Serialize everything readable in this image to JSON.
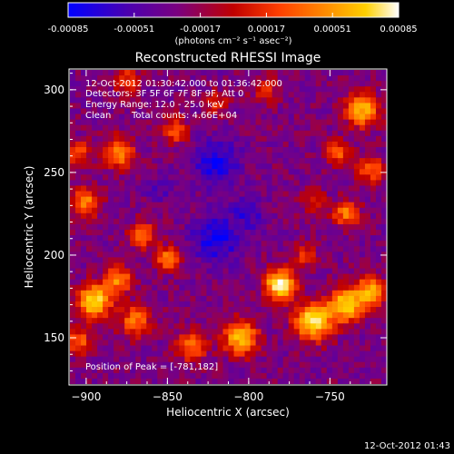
{
  "chart_data": {
    "type": "heatmap",
    "title": "Reconstructed RHESSI Image",
    "xlabel": "Heliocentric X (arcsec)",
    "ylabel": "Heliocentric Y (arcsec)",
    "xlim": [
      -910,
      -715
    ],
    "ylim": [
      122,
      312
    ],
    "x_ticks": [
      -900,
      -850,
      -800,
      -750
    ],
    "y_ticks": [
      150,
      200,
      250,
      300
    ],
    "colorbar": {
      "range": [
        -0.00085,
        0.00085
      ],
      "ticks": [
        "-0.00085",
        "-0.00051",
        "-0.00017",
        "0.00017",
        "0.00051",
        "0.00085"
      ],
      "unit_label": "(photons cm⁻² s⁻¹ asec⁻²)",
      "colors": [
        "#0000ff",
        "#4b00b0",
        "#7a0080",
        "#c00000",
        "#ff4000",
        "#ff8c00",
        "#ffd000",
        "#ffffff"
      ]
    },
    "annotations": {
      "time_range": "12-Oct-2012 01:30:42.000 to 01:36:42.000",
      "detectors": "Detectors: 3F 5F 6F 7F 8F 9F, Att 0",
      "energy": "Energy Range: 12.0 - 25.0 keV",
      "clean": "Clean",
      "total_counts": "Total counts: 4.66E+04",
      "peak": "Position of Peak = [-781,182]"
    },
    "sources": [
      {
        "x": -781,
        "y": 182,
        "amp": 1.0,
        "w": 9
      },
      {
        "x": -760,
        "y": 160,
        "amp": 0.95,
        "w": 11
      },
      {
        "x": -740,
        "y": 170,
        "amp": 0.85,
        "w": 10
      },
      {
        "x": -805,
        "y": 150,
        "amp": 0.8,
        "w": 10
      },
      {
        "x": -835,
        "y": 145,
        "amp": 0.55,
        "w": 9
      },
      {
        "x": -725,
        "y": 178,
        "amp": 0.7,
        "w": 9
      },
      {
        "x": -895,
        "y": 172,
        "amp": 0.9,
        "w": 10
      },
      {
        "x": -880,
        "y": 185,
        "amp": 0.6,
        "w": 8
      },
      {
        "x": -870,
        "y": 160,
        "amp": 0.55,
        "w": 9
      },
      {
        "x": -905,
        "y": 148,
        "amp": 0.5,
        "w": 8
      },
      {
        "x": -850,
        "y": 198,
        "amp": 0.6,
        "w": 7
      },
      {
        "x": -865,
        "y": 212,
        "amp": 0.5,
        "w": 8
      },
      {
        "x": -900,
        "y": 232,
        "amp": 0.55,
        "w": 9
      },
      {
        "x": -880,
        "y": 262,
        "amp": 0.65,
        "w": 9
      },
      {
        "x": -905,
        "y": 262,
        "amp": 0.45,
        "w": 7
      },
      {
        "x": -845,
        "y": 275,
        "amp": 0.45,
        "w": 8
      },
      {
        "x": -820,
        "y": 292,
        "amp": 0.3,
        "w": 7
      },
      {
        "x": -790,
        "y": 300,
        "amp": 0.3,
        "w": 8
      },
      {
        "x": -730,
        "y": 288,
        "amp": 0.75,
        "w": 10
      },
      {
        "x": -745,
        "y": 262,
        "amp": 0.55,
        "w": 7
      },
      {
        "x": -725,
        "y": 252,
        "amp": 0.5,
        "w": 8
      },
      {
        "x": -740,
        "y": 225,
        "amp": 0.55,
        "w": 8
      },
      {
        "x": -760,
        "y": 232,
        "amp": 0.35,
        "w": 7
      },
      {
        "x": -875,
        "y": 305,
        "amp": 0.4,
        "w": 8
      },
      {
        "x": -765,
        "y": 200,
        "amp": 0.35,
        "w": 7
      }
    ],
    "negative_regions": [
      {
        "x": -820,
        "y": 255,
        "amp": 0.55,
        "w": 14
      },
      {
        "x": -820,
        "y": 210,
        "amp": 0.6,
        "w": 14
      },
      {
        "x": -800,
        "y": 225,
        "amp": 0.35,
        "w": 10
      },
      {
        "x": -855,
        "y": 240,
        "amp": 0.25,
        "w": 8
      }
    ]
  },
  "footer": {
    "timestamp": "12-Oct-2012 01:43"
  }
}
